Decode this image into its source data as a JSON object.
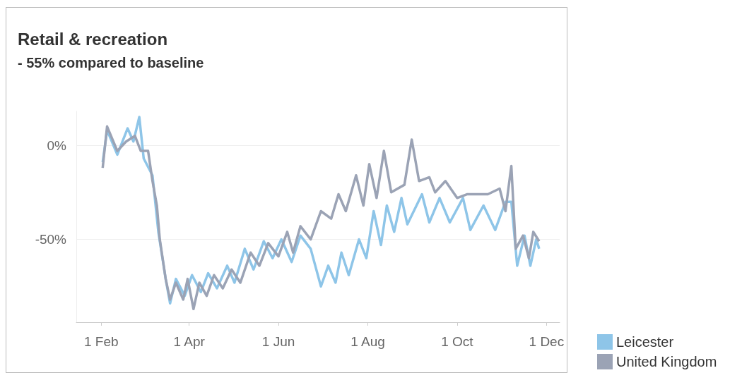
{
  "chart_data": {
    "type": "line",
    "title": "Retail & recreation",
    "subtitle": "- 55% compared to baseline",
    "xlim": [
      "--01-15",
      "--12-10"
    ],
    "xticks": [
      {
        "value": "--02-01",
        "label": "1 Feb"
      },
      {
        "value": "--04-01",
        "label": "1 Apr"
      },
      {
        "value": "--06-01",
        "label": "1 Jun"
      },
      {
        "value": "--08-01",
        "label": "1 Aug"
      },
      {
        "value": "--10-01",
        "label": "1 Oct"
      },
      {
        "value": "--12-01",
        "label": "1 Dec"
      }
    ],
    "ylim": [
      -94,
      18
    ],
    "yticks": [
      {
        "value": 0,
        "label": "0%"
      },
      {
        "value": -50,
        "label": "-50%"
      }
    ],
    "grid": "y",
    "legend": "bottom right",
    "marker": "none",
    "line_style": "solid",
    "series": [
      {
        "name": "Leicester",
        "color": "#8ec5e8",
        "x": [
          "--02-02",
          "--02-05",
          "--02-12",
          "--02-19",
          "--02-23",
          "--02-27",
          "--03-01",
          "--03-07",
          "--03-11",
          "--03-16",
          "--03-19",
          "--03-23",
          "--03-29",
          "--04-03",
          "--04-09",
          "--04-14",
          "--04-20",
          "--04-27",
          "--05-02",
          "--05-09",
          "--05-15",
          "--05-22",
          "--05-28",
          "--06-03",
          "--06-10",
          "--06-16",
          "--06-23",
          "--06-30",
          "--07-05",
          "--07-10",
          "--07-14",
          "--07-19",
          "--07-26",
          "--07-31",
          "--08-05",
          "--08-10",
          "--08-14",
          "--08-19",
          "--08-24",
          "--08-28",
          "--09-07",
          "--09-12",
          "--09-19",
          "--09-26",
          "--10-05",
          "--10-10",
          "--10-19",
          "--10-27",
          "--11-03",
          "--11-07",
          "--11-11",
          "--11-16",
          "--11-20",
          "--11-24",
          "--11-26"
        ],
        "values": [
          -9,
          8,
          -5,
          9,
          2,
          15,
          -7,
          -16,
          -46,
          -71,
          -84,
          -71,
          -80,
          -69,
          -78,
          -68,
          -76,
          -64,
          -73,
          -55,
          -66,
          -51,
          -60,
          -50,
          -62,
          -48,
          -55,
          -75,
          -64,
          -73,
          -57,
          -69,
          -50,
          -60,
          -35,
          -53,
          -32,
          -46,
          -28,
          -42,
          -26,
          -41,
          -28,
          -41,
          -28,
          -45,
          -32,
          -45,
          -30,
          -30,
          -64,
          -48,
          -64,
          -50,
          -55
        ]
      },
      {
        "name": "United Kingdom",
        "color": "#9ba3b5",
        "x": [
          "--02-02",
          "--02-05",
          "--02-12",
          "--02-18",
          "--02-24",
          "--02-28",
          "--03-04",
          "--03-07",
          "--03-10",
          "--03-12",
          "--03-16",
          "--03-19",
          "--03-23",
          "--03-28",
          "--03-31",
          "--04-04",
          "--04-08",
          "--04-13",
          "--04-18",
          "--04-24",
          "--04-30",
          "--05-06",
          "--05-13",
          "--05-19",
          "--05-25",
          "--06-01",
          "--06-07",
          "--06-11",
          "--06-16",
          "--06-23",
          "--06-30",
          "--07-07",
          "--07-12",
          "--07-17",
          "--07-24",
          "--07-29",
          "--08-02",
          "--08-07",
          "--08-12",
          "--08-17",
          "--08-26",
          "--08-31",
          "--09-05",
          "--09-12",
          "--09-16",
          "--09-23",
          "--10-01",
          "--10-08",
          "--10-15",
          "--10-22",
          "--10-30",
          "--11-03",
          "--11-07",
          "--11-10",
          "--11-15",
          "--11-19",
          "--11-22",
          "--11-26"
        ],
        "values": [
          -12,
          10,
          -3,
          2,
          5,
          -3,
          -3,
          -19,
          -32,
          -50,
          -71,
          -82,
          -73,
          -82,
          -71,
          -87,
          -73,
          -80,
          -69,
          -76,
          -66,
          -73,
          -57,
          -64,
          -52,
          -59,
          -46,
          -57,
          -43,
          -50,
          -35,
          -39,
          -26,
          -35,
          -16,
          -32,
          -10,
          -28,
          -3,
          -25,
          -21,
          3,
          -19,
          -17,
          -25,
          -19,
          -28,
          -26,
          -26,
          -26,
          -23,
          -35,
          -11,
          -55,
          -48,
          -60,
          -46,
          -51
        ]
      }
    ]
  }
}
